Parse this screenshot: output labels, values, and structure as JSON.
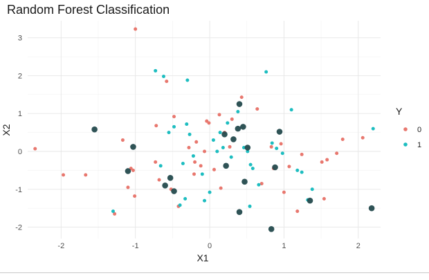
{
  "chart_data": {
    "type": "scatter",
    "title": "Random Forest Classification",
    "xlabel": "X1",
    "ylabel": "X2",
    "xlim": [
      -2.45,
      2.3
    ],
    "ylim": [
      -2.3,
      3.45
    ],
    "x_ticks": [
      -2,
      -1,
      0,
      1,
      2
    ],
    "y_ticks": [
      -2,
      -1,
      0,
      1,
      2,
      3
    ],
    "x_tick_labels": [
      "-2",
      "-1",
      "0",
      "1",
      "2"
    ],
    "y_tick_labels": [
      "-2",
      "-1",
      "0",
      "1",
      "2",
      "3"
    ],
    "grid": true,
    "legend": {
      "title": "Y",
      "placement": "right",
      "entries": [
        "0",
        "1"
      ]
    },
    "colors": {
      "0": "#E8776E",
      "1": "#1DBDC0",
      "highlight": "#244A4D"
    },
    "series": [
      {
        "name": "0",
        "points": [
          [
            -2.35,
            0.07
          ],
          [
            -1.97,
            -0.62
          ],
          [
            -1.67,
            -0.62
          ],
          [
            -1.28,
            -1.65
          ],
          [
            -1.17,
            0.3
          ],
          [
            -1.1,
            -0.95
          ],
          [
            -1.06,
            -0.45
          ],
          [
            -1.03,
            -0.5
          ],
          [
            -1.01,
            -1.18
          ],
          [
            -1.0,
            3.23
          ],
          [
            -0.73,
            -0.28
          ],
          [
            -0.68,
            -0.75
          ],
          [
            -0.72,
            0.68
          ],
          [
            -0.58,
            1.85
          ],
          [
            -0.52,
            -1.0
          ],
          [
            -0.48,
            0.92
          ],
          [
            -0.42,
            -1.45
          ],
          [
            -0.28,
            0.1
          ],
          [
            -0.2,
            -0.28
          ],
          [
            -0.21,
            -0.6
          ],
          [
            -0.18,
            0.25
          ],
          [
            -0.12,
            -0.38
          ],
          [
            -0.07,
            0.0
          ],
          [
            -0.04,
            0.8
          ],
          [
            -0.01,
            0.75
          ],
          [
            0.06,
            -0.48
          ],
          [
            0.13,
            0.97
          ],
          [
            0.15,
            -0.97
          ],
          [
            0.2,
            0.5
          ],
          [
            0.27,
            0.12
          ],
          [
            0.3,
            0.85
          ],
          [
            0.43,
            1.43
          ],
          [
            0.64,
            1.12
          ],
          [
            0.7,
            -0.85
          ],
          [
            0.83,
            0.12
          ],
          [
            0.96,
            0.2
          ],
          [
            1.0,
            -1.08
          ],
          [
            1.07,
            -0.4
          ],
          [
            1.18,
            -1.58
          ],
          [
            1.24,
            -0.08
          ],
          [
            1.51,
            -0.28
          ],
          [
            1.54,
            -1.25
          ],
          [
            1.58,
            -0.22
          ],
          [
            1.71,
            -0.05
          ],
          [
            1.79,
            0.32
          ],
          [
            2.06,
            0.36
          ],
          [
            0.86,
            -0.45
          ]
        ]
      },
      {
        "name": "1",
        "points": [
          [
            -1.3,
            -1.58
          ],
          [
            -0.73,
            2.13
          ],
          [
            -0.66,
            -0.38
          ],
          [
            -0.62,
            1.98
          ],
          [
            -0.55,
            0.5
          ],
          [
            -0.48,
            0.65
          ],
          [
            -0.4,
            -1.42
          ],
          [
            -0.36,
            -0.32
          ],
          [
            -0.33,
            -1.25
          ],
          [
            -0.31,
            0.72
          ],
          [
            -0.3,
            1.88
          ],
          [
            -0.27,
            0.45
          ],
          [
            -0.22,
            -0.12
          ],
          [
            -0.1,
            -0.6
          ],
          [
            -0.07,
            -1.3
          ],
          [
            0.0,
            -1.08
          ],
          [
            0.05,
            0.3
          ],
          [
            0.1,
            0.0
          ],
          [
            0.14,
            0.5
          ],
          [
            0.18,
            0.1
          ],
          [
            0.24,
            0.75
          ],
          [
            0.29,
            -0.15
          ],
          [
            0.38,
            1.05
          ],
          [
            0.46,
            0.1
          ],
          [
            0.51,
            0.0
          ],
          [
            0.55,
            -0.35
          ],
          [
            0.58,
            -0.45
          ],
          [
            0.54,
            -1.45
          ],
          [
            0.66,
            -0.88
          ],
          [
            0.76,
            2.1
          ],
          [
            0.84,
            0.22
          ],
          [
            0.9,
            0.08
          ],
          [
            0.98,
            -0.05
          ],
          [
            1.1,
            1.1
          ],
          [
            1.18,
            -0.5
          ],
          [
            1.24,
            -0.55
          ],
          [
            1.32,
            -1.28
          ],
          [
            1.38,
            -1.0
          ],
          [
            2.2,
            0.6
          ]
        ]
      }
    ],
    "highlighted_points": [
      [
        -1.55,
        0.58
      ],
      [
        -1.03,
        0.12
      ],
      [
        -1.1,
        -0.52
      ],
      [
        -0.6,
        -0.9
      ],
      [
        -0.53,
        -0.7
      ],
      [
        -0.48,
        -1.05
      ],
      [
        0.2,
        0.45
      ],
      [
        0.22,
        -0.38
      ],
      [
        0.32,
        0.32
      ],
      [
        0.38,
        0.6
      ],
      [
        0.4,
        1.25
      ],
      [
        0.45,
        0.65
      ],
      [
        0.4,
        -1.6
      ],
      [
        0.47,
        -0.8
      ],
      [
        0.51,
        0.1
      ],
      [
        0.83,
        -2.05
      ],
      [
        0.88,
        -0.42
      ],
      [
        0.94,
        0.52
      ],
      [
        1.35,
        -1.3
      ],
      [
        2.18,
        -1.5
      ]
    ]
  }
}
